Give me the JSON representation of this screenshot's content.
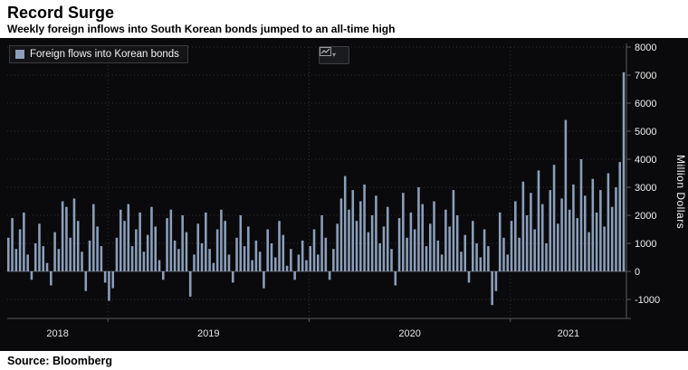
{
  "header": {
    "title": "Record Surge",
    "subtitle": "Weekly foreign inflows into South Korean bonds jumped to an all-time high"
  },
  "legend": {
    "label": "Foreign flows into Korean bonds",
    "swatch_color": "#8b9fbb"
  },
  "toolbar": {
    "chart_type_icon": "line-chart-icon",
    "caret": "▾"
  },
  "axes": {
    "y_axis_label": "Million Dollars",
    "y_tick_labels": [
      "8000",
      "7000",
      "6000",
      "5000",
      "4000",
      "3000",
      "2000",
      "1000",
      "0",
      "-1000"
    ],
    "x_tick_labels": [
      "2018",
      "2019",
      "2020",
      "2021"
    ]
  },
  "source": {
    "text": "Source: Bloomberg"
  },
  "colors": {
    "background": "#0a0a0c",
    "bar": "#8b9fbb",
    "grid": "#313238",
    "axis": "#5a5b60",
    "tick_text": "#f0f0f0"
  },
  "chart_data": {
    "type": "bar",
    "title": "Record Surge",
    "subtitle": "Weekly foreign inflows into South Korean bonds jumped to an all-time high",
    "series_name": "Foreign flows into Korean bonds",
    "ylabel": "Million Dollars",
    "unit": "Million Dollars",
    "frequency": "weekly",
    "ylim": [
      -1800,
      8300
    ],
    "y_ticks": [
      -1000,
      0,
      1000,
      2000,
      3000,
      4000,
      5000,
      6000,
      7000,
      8000
    ],
    "grid": "dotted horizontal at each 1000; dotted vertical at year starts",
    "legend_position": "top-left",
    "bar_color": "#8b9fbb",
    "n_points": 160,
    "x_year_segments": [
      {
        "label": "2018",
        "start_index": 0
      },
      {
        "label": "2019",
        "start_index": 26
      },
      {
        "label": "2020",
        "start_index": 78
      },
      {
        "label": "2021",
        "start_index": 130
      }
    ],
    "values": [
      1200,
      1900,
      800,
      1500,
      2100,
      600,
      -300,
      1000,
      1700,
      900,
      300,
      -500,
      1400,
      800,
      2500,
      2300,
      1200,
      2600,
      1800,
      700,
      -700,
      1100,
      2400,
      1600,
      900,
      -400,
      -1050,
      -600,
      1200,
      2200,
      1800,
      2400,
      900,
      1500,
      2100,
      700,
      1300,
      2300,
      1600,
      400,
      -300,
      1900,
      2200,
      1100,
      800,
      2000,
      1400,
      -900,
      600,
      1700,
      1000,
      2100,
      800,
      300,
      1500,
      2200,
      1800,
      600,
      -400,
      1200,
      2000,
      900,
      1600,
      400,
      1100,
      700,
      -600,
      1500,
      1000,
      500,
      1800,
      1300,
      200,
      800,
      -300,
      600,
      1100,
      400,
      900,
      1500,
      600,
      2000,
      1200,
      -300,
      800,
      1700,
      2600,
      3400,
      2200,
      2900,
      1800,
      2500,
      3100,
      1400,
      2000,
      2700,
      1000,
      1600,
      2300,
      800,
      -500,
      1900,
      2800,
      1200,
      2100,
      1500,
      3000,
      2400,
      900,
      1700,
      2500,
      1100,
      600,
      2200,
      1600,
      2900,
      2000,
      700,
      1300,
      -400,
      1800,
      1000,
      500,
      1500,
      900,
      -1200,
      -700,
      2100,
      1200,
      600,
      1800,
      2500,
      1200,
      3200,
      2000,
      2800,
      1500,
      3600,
      2400,
      1000,
      2900,
      3800,
      1700,
      2600,
      5400,
      2200,
      3100,
      1900,
      4000,
      2700,
      1400,
      3300,
      2100,
      2900,
      1600,
      3500,
      2300,
      3000,
      3900,
      7100
    ]
  }
}
